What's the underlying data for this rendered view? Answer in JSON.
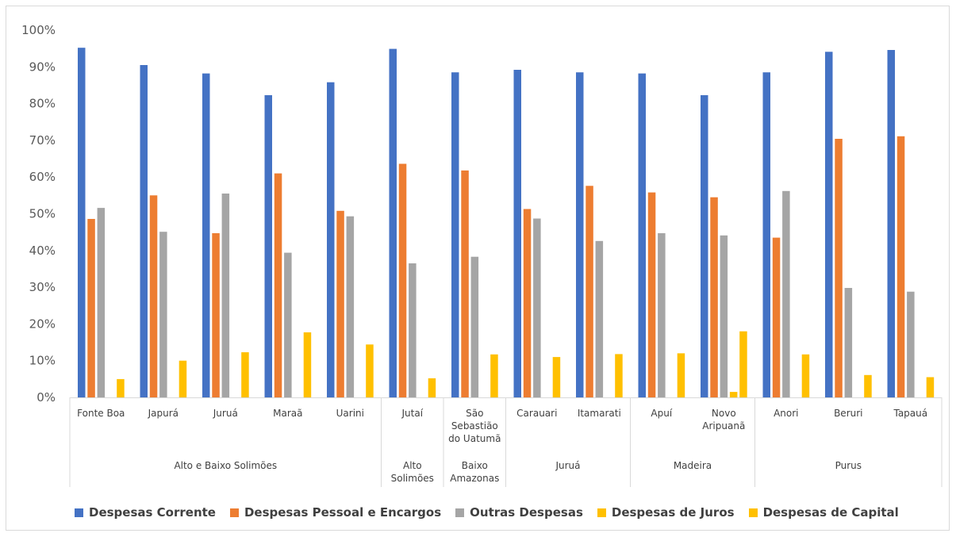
{
  "chart_data": {
    "type": "bar",
    "title": "",
    "xlabel": "",
    "ylabel": "",
    "ylim": [
      0,
      100
    ],
    "y_ticks": [
      "0%",
      "10%",
      "20%",
      "30%",
      "40%",
      "50%",
      "60%",
      "70%",
      "80%",
      "90%",
      "100%"
    ],
    "grid": false,
    "legend_position": "bottom",
    "categories": [
      "Fonte Boa",
      "Japurá",
      "Juruá",
      "Maraã",
      "Uarini",
      "Jutaí",
      "São Sebastião do Uatumã",
      "Carauari",
      "Itamarati",
      "Apuí",
      "Novo Aripuanã",
      "Anori",
      "Beruri",
      "Tapauá"
    ],
    "category_lines": [
      [
        "Fonte Boa"
      ],
      [
        "Japurá"
      ],
      [
        "Juruá"
      ],
      [
        "Maraã"
      ],
      [
        "Uarini"
      ],
      [
        "Jutaí"
      ],
      [
        "São",
        "Sebastião",
        "do Uatumã"
      ],
      [
        "Carauari"
      ],
      [
        "Itamarati"
      ],
      [
        "Apuí"
      ],
      [
        "Novo",
        "Aripuanã"
      ],
      [
        "Anori"
      ],
      [
        "Beruri"
      ],
      [
        "Tapauá"
      ]
    ],
    "groups": [
      {
        "name_lines": [
          "Alto e Baixo Solimões"
        ],
        "count": 5
      },
      {
        "name_lines": [
          "Alto",
          "Solimões"
        ],
        "count": 1
      },
      {
        "name_lines": [
          "Baixo",
          "Amazonas"
        ],
        "count": 1
      },
      {
        "name_lines": [
          "Juruá"
        ],
        "count": 2
      },
      {
        "name_lines": [
          "Madeira"
        ],
        "count": 2
      },
      {
        "name_lines": [
          "Purus"
        ],
        "count": 3
      }
    ],
    "series": [
      {
        "name": "Despesas Corrente",
        "color": "#4472c4",
        "values": [
          95.2,
          90.5,
          88.2,
          82.3,
          85.8,
          94.9,
          88.5,
          89.2,
          88.5,
          88.2,
          82.3,
          88.5,
          94.1,
          94.6
        ]
      },
      {
        "name": "Despesas Pessoal e Encargos",
        "color": "#ed7d31",
        "values": [
          48.6,
          55.0,
          44.7,
          61.0,
          50.8,
          63.6,
          61.8,
          51.3,
          57.6,
          55.8,
          54.5,
          43.5,
          70.4,
          71.1
        ]
      },
      {
        "name": "Outras Despesas",
        "color": "#a5a5a5",
        "values": [
          51.6,
          45.1,
          55.5,
          39.4,
          49.3,
          36.5,
          38.3,
          48.7,
          42.6,
          44.7,
          44.1,
          56.2,
          29.8,
          28.8
        ]
      },
      {
        "name": "Despesas de Juros",
        "color": "#ffc000",
        "values": [
          0,
          0,
          0,
          0,
          0,
          0,
          0,
          0,
          0,
          0,
          1.5,
          0,
          0,
          0
        ]
      },
      {
        "name": "Despesas de Capital",
        "color": "#ffc000",
        "values": [
          5.0,
          10.0,
          12.3,
          17.7,
          14.4,
          5.2,
          11.7,
          11.0,
          11.8,
          12.0,
          18.0,
          11.7,
          6.1,
          5.5
        ]
      }
    ]
  }
}
